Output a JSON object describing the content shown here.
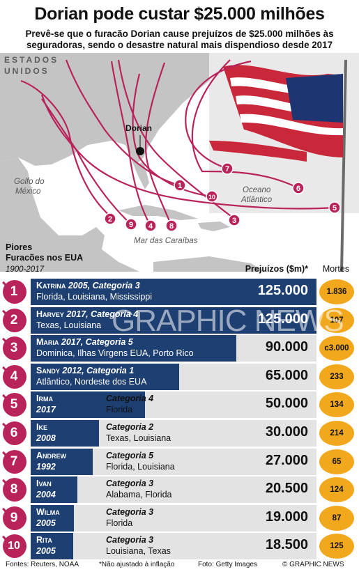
{
  "title": "Dorian pode custar $25.000 milhões",
  "subtitle": "Prevê-se que o furacão Dorian cause prejuízos de $25.000 milhões às seguradoras, sendo o desastre natural mais dispendioso desde 2017",
  "map": {
    "region_label": "ESTADOS UNIDOS",
    "gulf_label": "Golfo do México",
    "ocean_label": "Oceano Atlântico",
    "caribbean_label": "Mar das Caraíbas",
    "dorian_label": "Dorian",
    "track_markers": [
      "1",
      "2",
      "3",
      "4",
      "5",
      "6",
      "7",
      "8",
      "9",
      "10"
    ],
    "colors": {
      "track": "#b8235a",
      "land": "#bfbfbf",
      "sea": "#ffffff",
      "dorian_dot": "#111111"
    }
  },
  "section": {
    "title_line1": "Piores",
    "title_line2": "Furacões nos EUA",
    "years": "1900-2017"
  },
  "headers": {
    "loss": "Prejuízos ($m)*",
    "deaths": "Mortes"
  },
  "colors": {
    "bar": "#1d3f72",
    "track": "#e3e3e3",
    "badge": "#b8235a",
    "deaths_circle": "#f2a81d"
  },
  "chart_data": {
    "type": "bar",
    "title": "Piores Furacões nos EUA",
    "subtitle": "1900-2017",
    "xlabel": "Prejuízos ($m)*",
    "categories": [
      "Katrina",
      "Harvey",
      "Maria",
      "Sandy",
      "Irma",
      "Ike",
      "Andrew",
      "Ivan",
      "Wilma",
      "Rita"
    ],
    "values": [
      125000,
      125000,
      90000,
      65000,
      50000,
      30000,
      27000,
      20500,
      19000,
      18500
    ],
    "xlim": [
      0,
      125000
    ],
    "rows": [
      {
        "rank": "1",
        "name": "Katrina",
        "year": "2005",
        "category": "Categoria 3",
        "states": "Florida, Louisiana, Mississippi",
        "loss": 125000,
        "loss_label": "125.000",
        "deaths": "1.836"
      },
      {
        "rank": "2",
        "name": "Harvey",
        "year": "2017",
        "category": "Categoria 4",
        "states": "Texas, Louisiana",
        "loss": 125000,
        "loss_label": "125.000",
        "deaths": "107"
      },
      {
        "rank": "3",
        "name": "Maria",
        "year": "2017",
        "category": "Categoria 5",
        "states": "Dominica, Ilhas Virgens EUA, Porto Rico",
        "loss": 90000,
        "loss_label": "90.000",
        "deaths": "c3.000"
      },
      {
        "rank": "4",
        "name": "Sandy",
        "year": "2012",
        "category": "Categoria 1",
        "states": "Atlântico, Nordeste dos EUA",
        "loss": 65000,
        "loss_label": "65.000",
        "deaths": "233"
      },
      {
        "rank": "5",
        "name": "Irma",
        "year": "2017",
        "category": "Categoria 4",
        "states": "Florida",
        "loss": 50000,
        "loss_label": "50.000",
        "deaths": "134"
      },
      {
        "rank": "6",
        "name": "Ike",
        "year": "2008",
        "category": "Categoria 2",
        "states": "Texas, Louisiana",
        "loss": 30000,
        "loss_label": "30.000",
        "deaths": "214"
      },
      {
        "rank": "7",
        "name": "Andrew",
        "year": "1992",
        "category": "Categoria 5",
        "states": "Florida, Louisiana",
        "loss": 27000,
        "loss_label": "27.000",
        "deaths": "65"
      },
      {
        "rank": "8",
        "name": "Ivan",
        "year": "2004",
        "category": "Categoria 3",
        "states": "Alabama, Florida",
        "loss": 20500,
        "loss_label": "20.500",
        "deaths": "124"
      },
      {
        "rank": "9",
        "name": "Wilma",
        "year": "2005",
        "category": "Categoria 3",
        "states": "Florida",
        "loss": 19000,
        "loss_label": "19.000",
        "deaths": "87"
      },
      {
        "rank": "10",
        "name": "Rita",
        "year": "2005",
        "category": "Categoria 3",
        "states": "Louisiana, Texas",
        "loss": 18500,
        "loss_label": "18.500",
        "deaths": "125"
      }
    ]
  },
  "footer": {
    "sources": "Fontes: Reuters, NOAA",
    "note": "*Não ajustado à inflação",
    "photo": "Foto: Getty Images",
    "copyright": "© GRAPHIC NEWS"
  },
  "watermark": "GRAPHIC NEWS"
}
